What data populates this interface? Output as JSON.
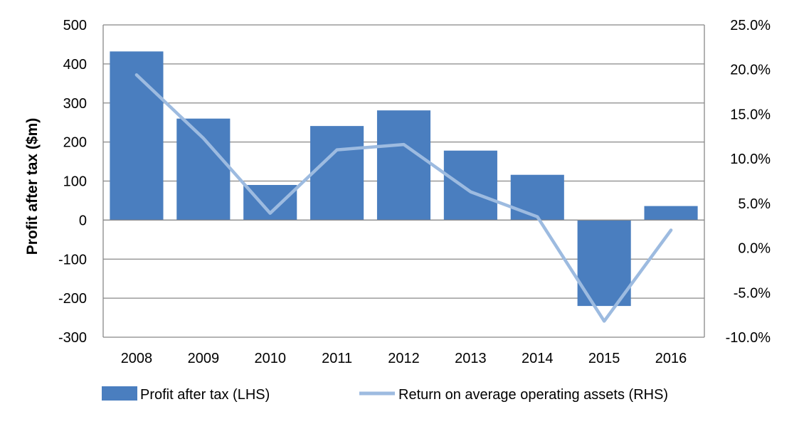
{
  "chart_data": {
    "type": "bar+line",
    "categories": [
      "2008",
      "2009",
      "2010",
      "2011",
      "2012",
      "2013",
      "2014",
      "2015",
      "2016"
    ],
    "series": [
      {
        "name": "Profit after tax (LHS)",
        "type": "bar",
        "axis": "left",
        "values": [
          432,
          260,
          90,
          241,
          281,
          178,
          116,
          -220,
          36
        ]
      },
      {
        "name": "Return on average operating assets (RHS)",
        "type": "line",
        "axis": "right",
        "values": [
          19.4,
          12.3,
          3.9,
          11.0,
          11.6,
          6.3,
          3.5,
          -8.2,
          2.0
        ]
      }
    ],
    "ylabel": "Profit after tax ($m)",
    "ylim_left": [
      -300,
      500
    ],
    "yticks_left": [
      "500",
      "400",
      "300",
      "200",
      "100",
      "0",
      "-100",
      "-200",
      "-300"
    ],
    "ylim_right": [
      -10,
      25
    ],
    "yticks_right": [
      "25.0%",
      "20.0%",
      "15.0%",
      "10.0%",
      "5.0%",
      "0.0%",
      "-5.0%",
      "-10.0%"
    ],
    "grid": "horizontal",
    "legend_position": "bottom",
    "colors": {
      "bar": "#4a7ebf",
      "line": "#9dbbe0",
      "grid": "#888888",
      "axis": "#888888"
    }
  }
}
